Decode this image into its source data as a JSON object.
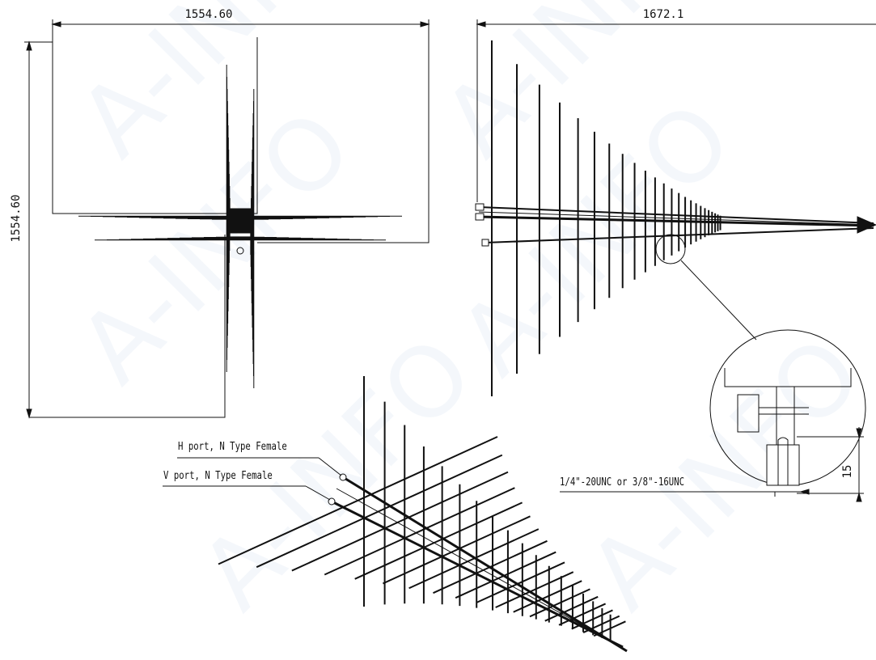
{
  "views": {
    "front": {
      "width_dim": "1554.60",
      "height_dim": "1554.60"
    },
    "side": {
      "length_dim": "1672.1"
    },
    "detail": {
      "thread_spec": "1/4\"-20UNC  or 3/8\"-16UNC",
      "depth_dim": "15"
    },
    "perspective": {
      "h_port": "H port, N Type Female",
      "v_port": "V port, N Type Female"
    }
  },
  "watermark": {
    "text": "A-INFO",
    "color": "#c4d2e8"
  }
}
